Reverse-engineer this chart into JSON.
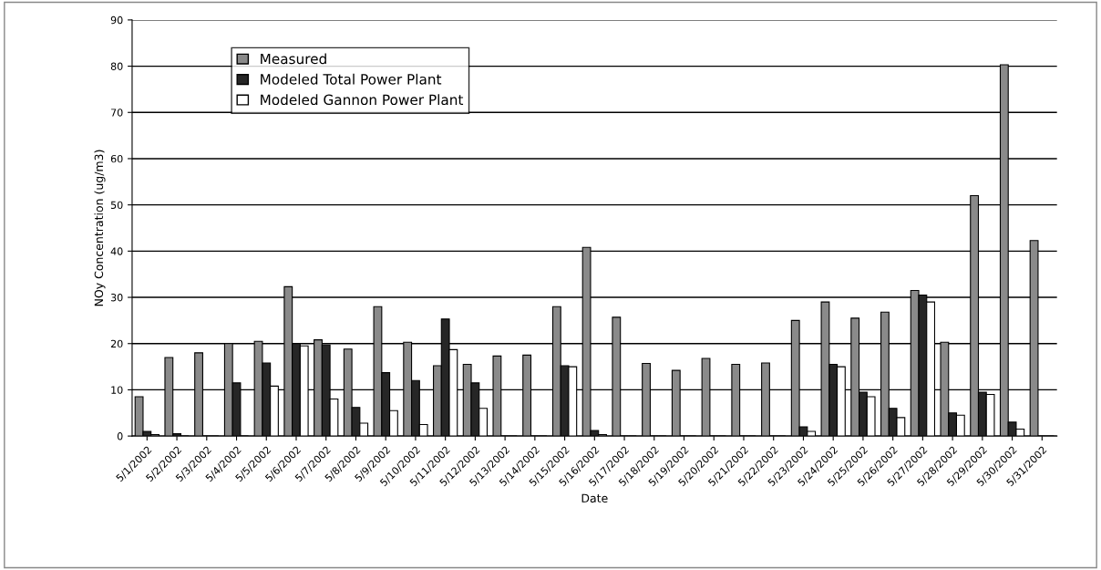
{
  "chart_data": {
    "type": "bar",
    "xlabel": "Date",
    "ylabel": "NOy Concentration (ug/m3)",
    "categories": [
      "5/1/2002",
      "5/2/2002",
      "5/3/2002",
      "5/4/2002",
      "5/5/2002",
      "5/6/2002",
      "5/7/2002",
      "5/8/2002",
      "5/9/2002",
      "5/10/2002",
      "5/11/2002",
      "5/12/2002",
      "5/13/2002",
      "5/14/2002",
      "5/15/2002",
      "5/16/2002",
      "5/17/2002",
      "5/18/2002",
      "5/19/2002",
      "5/20/2002",
      "5/21/2002",
      "5/22/2002",
      "5/23/2002",
      "5/24/2002",
      "5/25/2002",
      "5/26/2002",
      "5/27/2002",
      "5/28/2002",
      "5/29/2002",
      "5/30/2002",
      "5/31/2002"
    ],
    "series": [
      {
        "name": "Measured",
        "color": "#8a8a8a",
        "values": [
          8.5,
          17,
          18,
          20,
          20.5,
          32.3,
          20.8,
          18.8,
          28,
          20.3,
          15.2,
          15.5,
          17.3,
          17.5,
          28,
          40.8,
          25.7,
          15.7,
          14.2,
          16.8,
          15.5,
          15.8,
          25,
          29,
          25.5,
          26.8,
          31.5,
          20.3,
          52,
          80.3,
          42.3
        ]
      },
      {
        "name": "Modeled Total Power Plant",
        "color": "#262626",
        "values": [
          1,
          0.5,
          0,
          11.5,
          15.8,
          20,
          19.7,
          6.2,
          13.7,
          12,
          25.3,
          11.5,
          0,
          0,
          15.2,
          1.2,
          0,
          0,
          0,
          0,
          0,
          0,
          2,
          15.5,
          9.5,
          6,
          30.5,
          5,
          9.5,
          3,
          0
        ]
      },
      {
        "name": "Modeled Gannon Power Plant",
        "color": "#ffffff",
        "values": [
          0.3,
          0,
          0,
          0,
          10.8,
          19.5,
          8,
          2.8,
          5.5,
          2.5,
          18.7,
          6,
          0,
          0,
          15,
          0.3,
          0,
          0,
          0,
          0,
          0,
          0,
          1,
          15,
          8.5,
          4,
          29,
          4.5,
          9,
          1.5,
          0
        ]
      }
    ],
    "ylim": [
      0,
      90
    ],
    "yticks": [
      0,
      10,
      20,
      30,
      40,
      50,
      60,
      70,
      80,
      90
    ],
    "grid": "y",
    "legend": "top left"
  }
}
